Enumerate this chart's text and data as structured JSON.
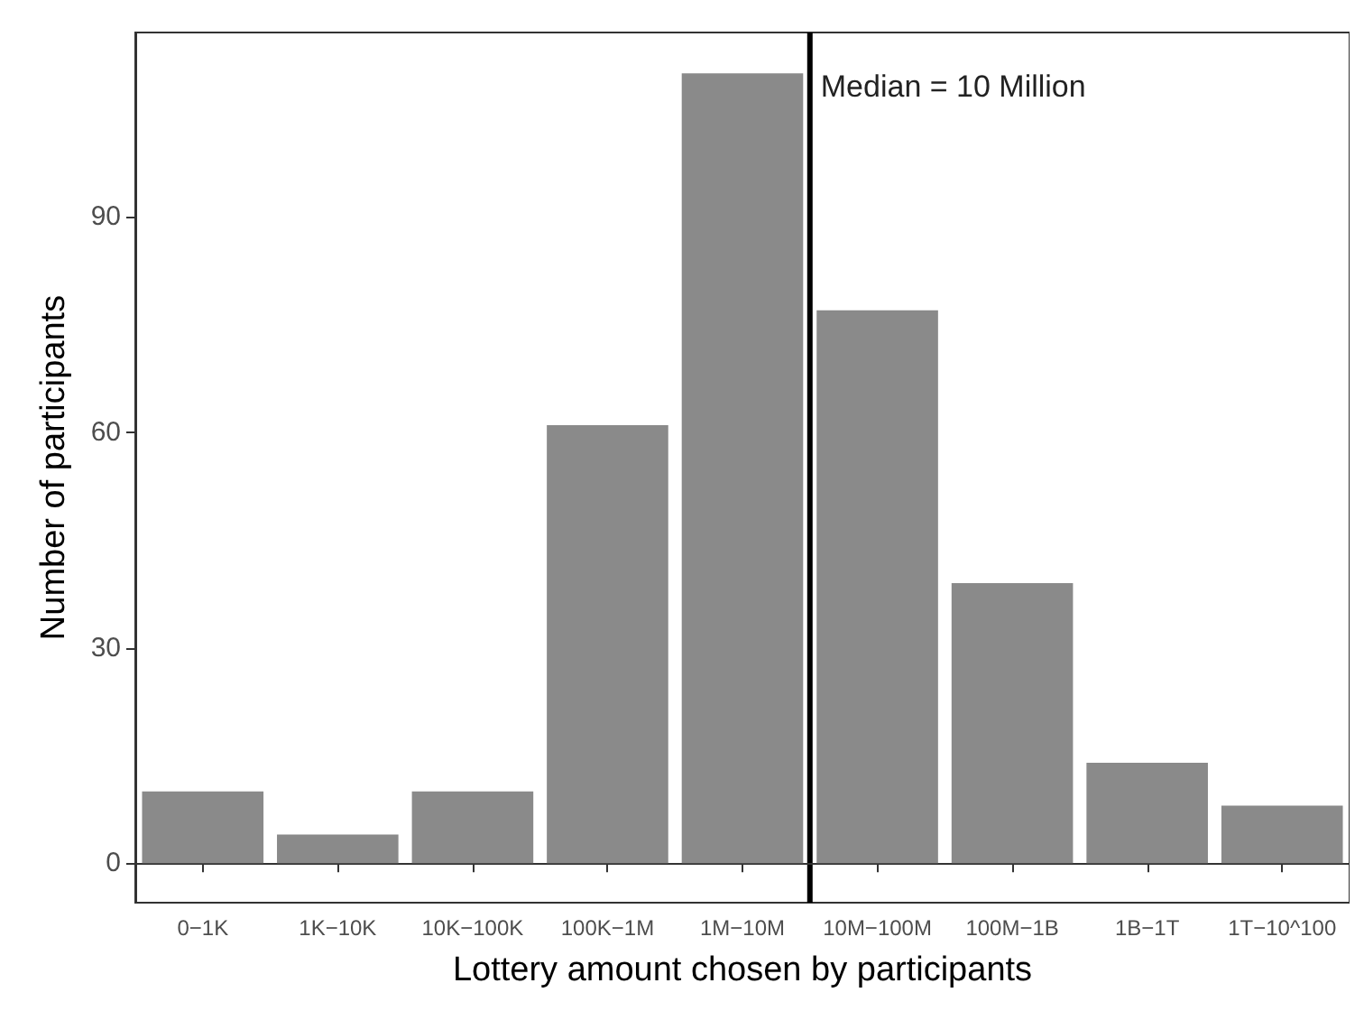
{
  "chart_data": {
    "type": "bar",
    "xlabel": "Lottery amount chosen by participants",
    "ylabel": "Number of participants",
    "categories": [
      "0−1K",
      "1K−10K",
      "10K−100K",
      "100K−1M",
      "1M−10M",
      "10M−100M",
      "100M−1B",
      "1B−1T",
      "1T−10^100"
    ],
    "values": [
      10,
      4,
      10,
      61,
      110,
      77,
      39,
      14,
      8
    ],
    "color": "#8a8a8a",
    "ylim": [
      -5.5,
      115.7
    ],
    "yticks": [
      0,
      30,
      60,
      90
    ],
    "grid": false,
    "ref_lines": [
      {
        "axis": "x",
        "value": "10M−100M",
        "label": "Median = 10 Million",
        "color": "#000000"
      }
    ]
  }
}
